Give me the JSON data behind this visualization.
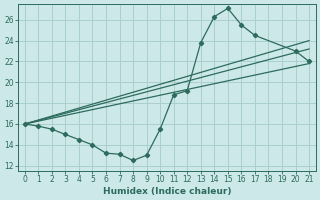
{
  "bg_color": "#cde8e8",
  "grid_color": "#aacfcf",
  "line_color": "#2d6b5e",
  "marker": "D",
  "markersize": 2.2,
  "linewidth": 0.9,
  "xlabel": "Humidex (Indice chaleur)",
  "xlim": [
    -0.5,
    21.5
  ],
  "ylim": [
    11.5,
    27.5
  ],
  "xticks": [
    0,
    1,
    2,
    3,
    4,
    5,
    6,
    7,
    8,
    9,
    10,
    11,
    12,
    13,
    14,
    15,
    16,
    17,
    18,
    19,
    20,
    21
  ],
  "yticks": [
    12,
    14,
    16,
    18,
    20,
    22,
    24,
    26
  ],
  "line1_x": [
    0,
    1,
    2,
    3,
    4,
    5,
    6,
    7,
    8,
    9,
    10,
    11,
    12,
    13,
    14,
    15,
    16,
    17,
    20,
    21
  ],
  "line1_y": [
    16.0,
    15.8,
    15.5,
    15.0,
    14.5,
    14.0,
    13.2,
    13.1,
    12.5,
    13.0,
    15.5,
    18.8,
    19.2,
    23.8,
    26.3,
    27.1,
    25.5,
    24.5,
    23.0,
    22.0
  ],
  "line2_x": [
    0,
    21
  ],
  "line2_y": [
    16.0,
    21.8
  ],
  "line3_x": [
    0,
    21
  ],
  "line3_y": [
    16.0,
    23.2
  ],
  "line4_x": [
    0,
    21
  ],
  "line4_y": [
    16.0,
    24.0
  ],
  "xlabel_fontsize": 6.5,
  "tick_fontsize": 5.5
}
